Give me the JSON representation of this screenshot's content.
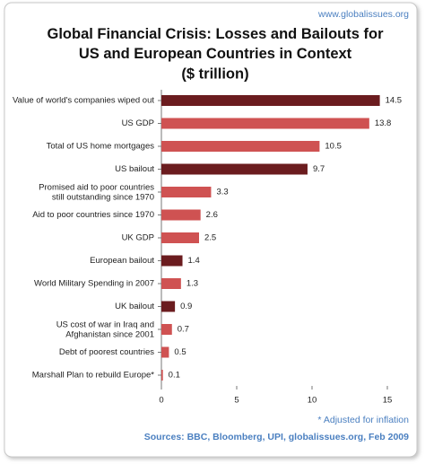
{
  "chart_data": {
    "type": "bar",
    "orientation": "horizontal",
    "website": "www.globalissues.org",
    "title": "Global Financial Crisis: Losses and Bailouts for\nUS and European Countries in Context",
    "subtitle": "($ trillion)",
    "categories": [
      "Value of world's companies wiped out",
      "US GDP",
      "Total of US home mortgages",
      "US bailout",
      "Promised aid to poor countries\nstill outstanding since 1970",
      "Aid to poor countries since 1970",
      "UK GDP",
      "European bailout",
      "World Military Spending in 2007",
      "UK bailout",
      "US cost of war in Iraq and\nAfghanistan since 2001",
      "Debt of poorest countries",
      "Marshall Plan to rebuild Europe*"
    ],
    "values": [
      14.5,
      13.8,
      10.5,
      9.7,
      3.3,
      2.6,
      2.5,
      1.4,
      1.3,
      0.9,
      0.7,
      0.5,
      0.1
    ],
    "colors": [
      "#6b1c1f",
      "#cf5252",
      "#cf5252",
      "#6b1c1f",
      "#cf5252",
      "#cf5252",
      "#cf5252",
      "#6b1c1f",
      "#cf5252",
      "#6b1c1f",
      "#cf5252",
      "#cf5252",
      "#cf5252"
    ],
    "xlim": [
      0,
      15
    ],
    "xticks": [
      0,
      5,
      10,
      15
    ],
    "grid": false,
    "note": "* Adjusted for inflation",
    "source": "Sources: BBC, Bloomberg, UPI, globalissues.org, Feb 2009"
  }
}
